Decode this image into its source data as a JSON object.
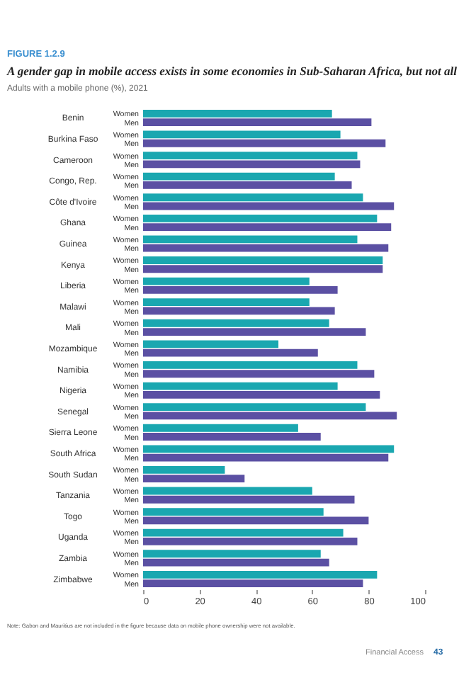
{
  "chart_data": {
    "type": "bar",
    "orientation": "horizontal",
    "title": "A gender gap in mobile access exists in some economies in Sub-Saharan Africa, but not all",
    "subtitle": "Adults with a mobile phone (%), 2021",
    "categories": [
      "Benin",
      "Burkina Faso",
      "Cameroon",
      "Congo, Rep.",
      "Côte d'Ivoire",
      "Ghana",
      "Guinea",
      "Kenya",
      "Liberia",
      "Malawi",
      "Mali",
      "Mozambique",
      "Namibia",
      "Nigeria",
      "Senegal",
      "Sierra Leone",
      "South Africa",
      "South Sudan",
      "Tanzania",
      "Togo",
      "Uganda",
      "Zambia",
      "Zimbabwe"
    ],
    "series": [
      {
        "name": "Women",
        "color": "#1aa7b0",
        "values": [
          67,
          70,
          76,
          68,
          78,
          83,
          76,
          85,
          59,
          59,
          66,
          48,
          76,
          69,
          79,
          55,
          89,
          29,
          60,
          64,
          71,
          63,
          83
        ]
      },
      {
        "name": "Men",
        "color": "#5b50a3",
        "values": [
          81,
          86,
          77,
          74,
          89,
          88,
          87,
          85,
          69,
          68,
          79,
          62,
          82,
          84,
          90,
          63,
          87,
          36,
          75,
          80,
          76,
          66,
          78
        ]
      }
    ],
    "xlim": [
      0,
      100
    ],
    "xticks": [
      0,
      20,
      40,
      60,
      80,
      100
    ],
    "grid": false,
    "legend": false,
    "annotations": [
      "FIGURE 1.2.9",
      "Note: Gabon and Mauritius are not included in the figure because data on mobile phone ownership were not available.",
      "Financial Access",
      "43"
    ]
  }
}
